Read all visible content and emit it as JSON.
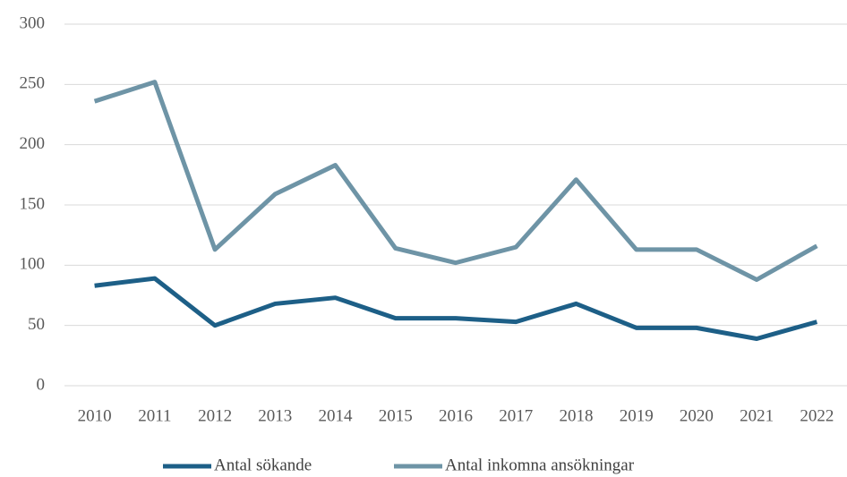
{
  "chart_data": {
    "type": "line",
    "categories": [
      "2010",
      "2011",
      "2012",
      "2013",
      "2014",
      "2015",
      "2016",
      "2017",
      "2018",
      "2019",
      "2020",
      "2021",
      "2022"
    ],
    "series": [
      {
        "name": "Antal sökande",
        "color": "#1d5f87",
        "values": [
          83,
          89,
          50,
          68,
          73,
          56,
          56,
          53,
          68,
          48,
          48,
          39,
          53
        ]
      },
      {
        "name": "Antal inkomna ansökningar",
        "color": "#6e94a6",
        "values": [
          236,
          252,
          113,
          159,
          183,
          114,
          102,
          115,
          171,
          113,
          113,
          88,
          116
        ]
      }
    ],
    "ylim": [
      0,
      300
    ],
    "yticks": [
      0,
      50,
      100,
      150,
      200,
      250,
      300
    ],
    "grid": true,
    "legend": "bottom"
  }
}
